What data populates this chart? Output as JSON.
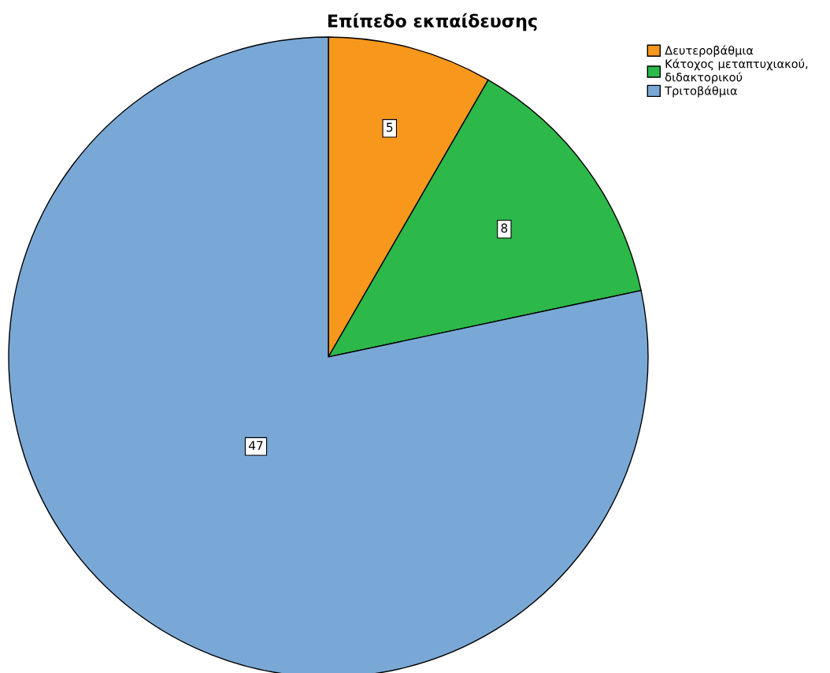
{
  "chart_data": {
    "type": "pie",
    "title": "Επίπεδο εκπαίδευσης",
    "categories": [
      "Δευτεροβάθμια",
      "Κάτοχος μεταπτυχιακού,\nδιδακτορικού",
      "Τριτοβάθμια"
    ],
    "values": [
      5,
      8,
      47
    ],
    "colors": [
      "#f7971c",
      "#2db84a",
      "#7aa8d6"
    ],
    "data_labels": true,
    "legend": "top right"
  }
}
